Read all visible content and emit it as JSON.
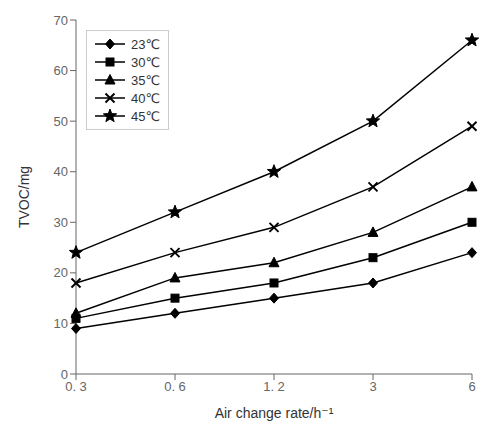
{
  "chart_data": {
    "type": "line",
    "categories": [
      "0. 3",
      "0. 6",
      "1. 2",
      "3",
      "6"
    ],
    "series": [
      {
        "name": "23℃",
        "color": "#000000",
        "marker": "diamond",
        "values": [
          9,
          12,
          15,
          18,
          24
        ]
      },
      {
        "name": "30℃",
        "color": "#000000",
        "marker": "square",
        "values": [
          11,
          15,
          18,
          23,
          30
        ]
      },
      {
        "name": "35℃",
        "color": "#000000",
        "marker": "triangle",
        "values": [
          12,
          19,
          22,
          28,
          37
        ]
      },
      {
        "name": "40℃",
        "color": "#000000",
        "marker": "x",
        "values": [
          18,
          24,
          29,
          37,
          49
        ]
      },
      {
        "name": "45℃",
        "color": "#000000",
        "marker": "star",
        "values": [
          24,
          32,
          40,
          50,
          66
        ]
      }
    ],
    "xlabel": "Air change rate/h⁻¹",
    "ylabel": "TVOC/mg",
    "ylim": [
      0,
      70
    ],
    "yticks": [
      0,
      10,
      20,
      30,
      40,
      50,
      60,
      70
    ],
    "legend": "upper left"
  }
}
